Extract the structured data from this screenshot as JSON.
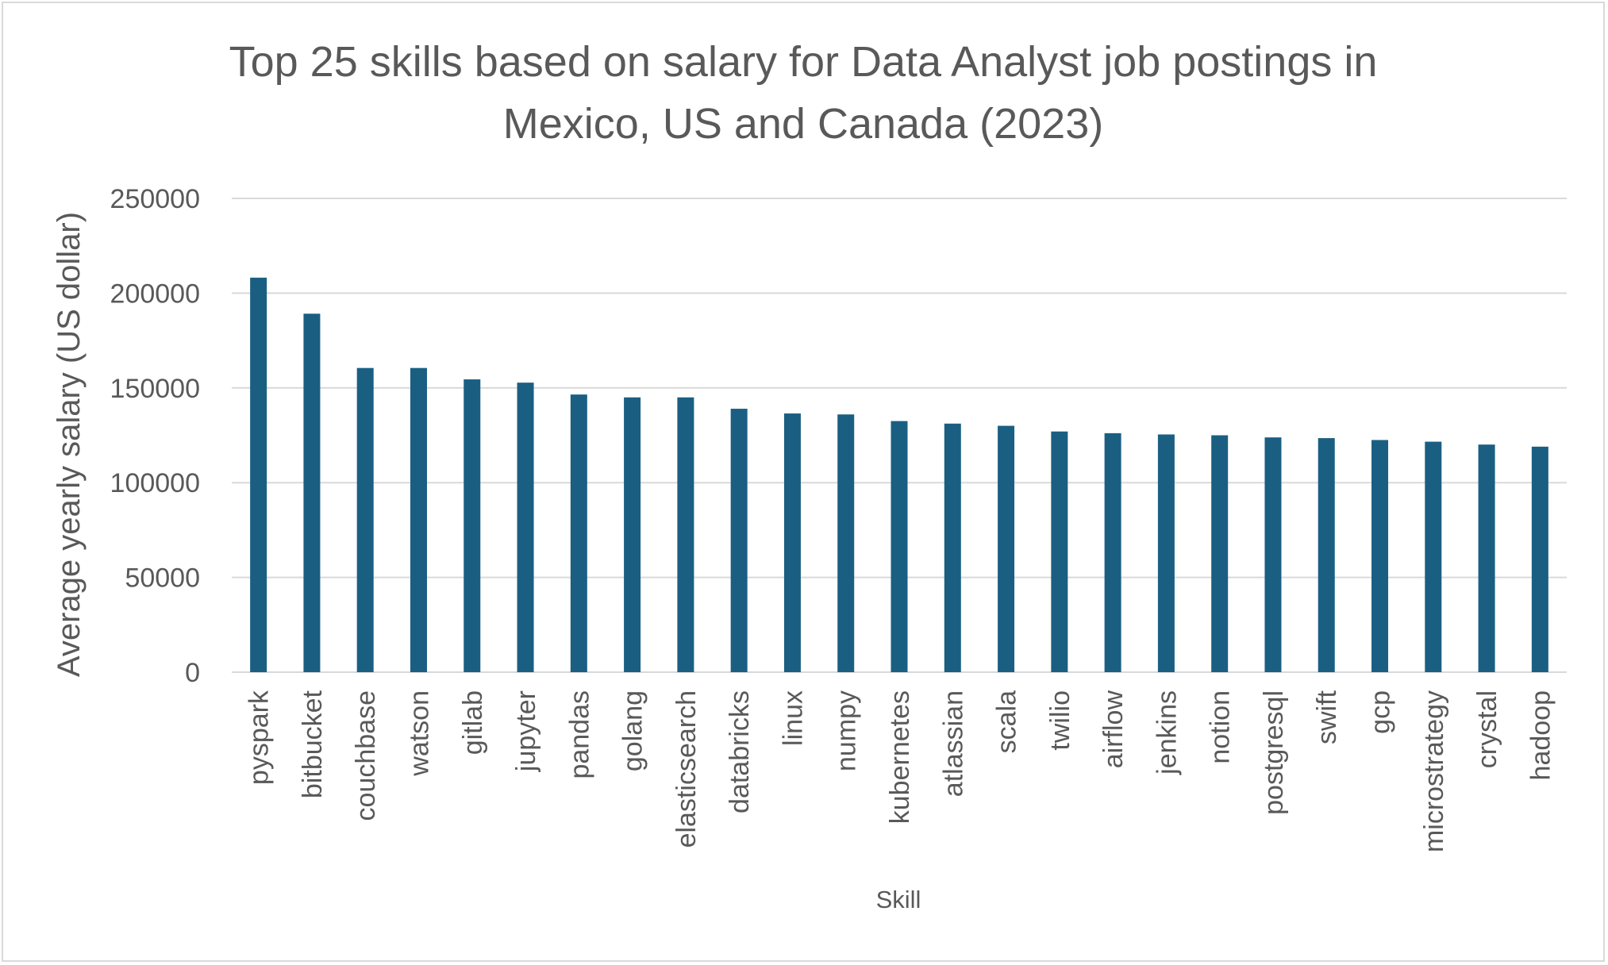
{
  "chart_data": {
    "type": "bar",
    "title_lines": [
      "Top 25 skills based on salary for Data Analyst job postings in",
      "Mexico, US and Canada (2023)"
    ],
    "xlabel": "Skill",
    "ylabel": "Average  yearly salary (US dollar)",
    "ylim": [
      0,
      250000
    ],
    "y_ticks": [
      "0",
      "50000",
      "100000",
      "150000",
      "200000",
      "250000"
    ],
    "grid": true,
    "legend": "none",
    "bar_color": "#1a5f82",
    "gridline_color": "#d9d9d9",
    "categories": [
      "pyspark",
      "bitbucket",
      "couchbase",
      "watson",
      "gitlab",
      "jupyter",
      "pandas",
      "golang",
      "elasticsearch",
      "databricks",
      "linux",
      "numpy",
      "kubernetes",
      "atlassian",
      "scala",
      "twilio",
      "airflow",
      "jenkins",
      "notion",
      "postgresql",
      "swift",
      "gcp",
      "microstrategy",
      "crystal",
      "hadoop"
    ],
    "values": [
      208172,
      189155,
      160515,
      160515,
      154500,
      152777,
      146508,
      145000,
      145000,
      139000,
      136508,
      136000,
      132500,
      131162,
      130000,
      127000,
      126103,
      125436,
      125000,
      123879,
      123500,
      122500,
      121619,
      120100,
      119000
    ]
  }
}
